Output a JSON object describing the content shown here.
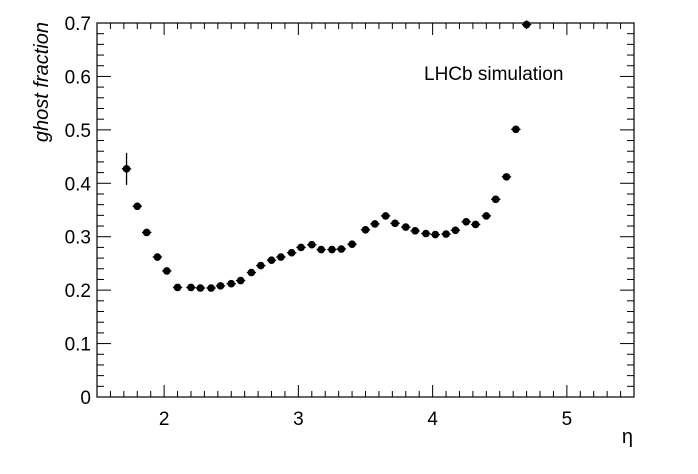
{
  "chart_data": {
    "type": "scatter",
    "xlabel": "η",
    "ylabel": "ghost fraction",
    "annotation": "LHCb simulation",
    "xlim": [
      1.5,
      5.5
    ],
    "ylim": [
      0,
      0.7
    ],
    "x_ticks": [
      2,
      3,
      4,
      5
    ],
    "y_ticks": [
      0,
      0.1,
      0.2,
      0.3,
      0.4,
      0.5,
      0.6,
      0.7
    ],
    "grid": false,
    "series": [
      {
        "marker_color": "#000000",
        "points": [
          {
            "x": 1.72,
            "y": 0.427,
            "yerr": 0.03
          },
          {
            "x": 1.8,
            "y": 0.357,
            "yerr": 0.007
          },
          {
            "x": 1.87,
            "y": 0.308,
            "yerr": 0.005
          },
          {
            "x": 1.95,
            "y": 0.262,
            "yerr": 0.004
          },
          {
            "x": 2.02,
            "y": 0.236,
            "yerr": 0.004
          },
          {
            "x": 2.1,
            "y": 0.205,
            "yerr": 0.003
          },
          {
            "x": 2.2,
            "y": 0.205,
            "yerr": 0.003
          },
          {
            "x": 2.27,
            "y": 0.204,
            "yerr": 0.003
          },
          {
            "x": 2.35,
            "y": 0.204,
            "yerr": 0.003
          },
          {
            "x": 2.42,
            "y": 0.208,
            "yerr": 0.003
          },
          {
            "x": 2.5,
            "y": 0.212,
            "yerr": 0.003
          },
          {
            "x": 2.57,
            "y": 0.218,
            "yerr": 0.003
          },
          {
            "x": 2.65,
            "y": 0.233,
            "yerr": 0.003
          },
          {
            "x": 2.72,
            "y": 0.246,
            "yerr": 0.003
          },
          {
            "x": 2.8,
            "y": 0.256,
            "yerr": 0.003
          },
          {
            "x": 2.87,
            "y": 0.262,
            "yerr": 0.003
          },
          {
            "x": 2.95,
            "y": 0.27,
            "yerr": 0.003
          },
          {
            "x": 3.02,
            "y": 0.28,
            "yerr": 0.003
          },
          {
            "x": 3.1,
            "y": 0.285,
            "yerr": 0.003
          },
          {
            "x": 3.17,
            "y": 0.276,
            "yerr": 0.003
          },
          {
            "x": 3.25,
            "y": 0.276,
            "yerr": 0.003
          },
          {
            "x": 3.32,
            "y": 0.277,
            "yerr": 0.003
          },
          {
            "x": 3.4,
            "y": 0.286,
            "yerr": 0.003
          },
          {
            "x": 3.5,
            "y": 0.313,
            "yerr": 0.003
          },
          {
            "x": 3.57,
            "y": 0.324,
            "yerr": 0.003
          },
          {
            "x": 3.65,
            "y": 0.339,
            "yerr": 0.003
          },
          {
            "x": 3.72,
            "y": 0.325,
            "yerr": 0.003
          },
          {
            "x": 3.8,
            "y": 0.318,
            "yerr": 0.003
          },
          {
            "x": 3.87,
            "y": 0.311,
            "yerr": 0.003
          },
          {
            "x": 3.95,
            "y": 0.306,
            "yerr": 0.003
          },
          {
            "x": 4.02,
            "y": 0.304,
            "yerr": 0.003
          },
          {
            "x": 4.1,
            "y": 0.305,
            "yerr": 0.003
          },
          {
            "x": 4.17,
            "y": 0.312,
            "yerr": 0.003
          },
          {
            "x": 4.25,
            "y": 0.328,
            "yerr": 0.003
          },
          {
            "x": 4.32,
            "y": 0.323,
            "yerr": 0.003
          },
          {
            "x": 4.4,
            "y": 0.339,
            "yerr": 0.004
          },
          {
            "x": 4.47,
            "y": 0.37,
            "yerr": 0.004
          },
          {
            "x": 4.55,
            "y": 0.412,
            "yerr": 0.005
          },
          {
            "x": 4.62,
            "y": 0.501,
            "yerr": 0.006
          },
          {
            "x": 4.7,
            "y": 0.697,
            "yerr": 0.008
          }
        ]
      }
    ]
  }
}
